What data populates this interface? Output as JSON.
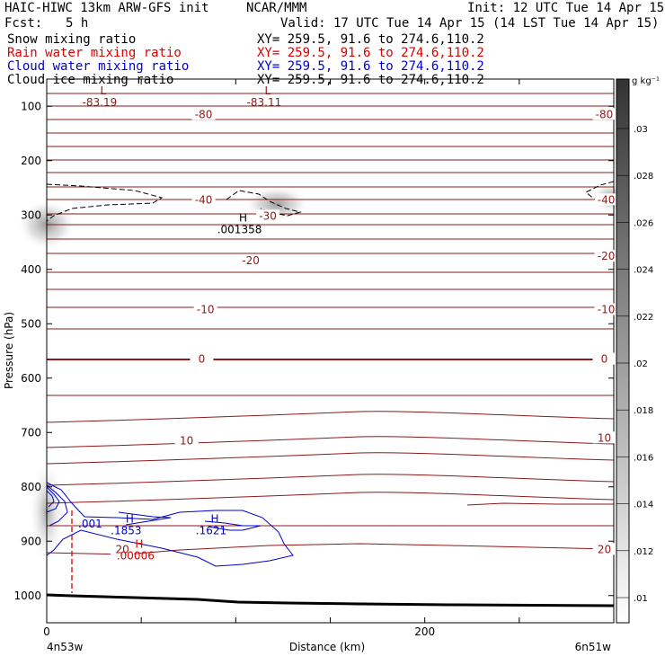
{
  "header": {
    "title": "HAIC-HIWC 13km ARW-GFS init",
    "org": "NCAR/MMM",
    "init": "Init: 12 UTC Tue 14 Apr 15",
    "fcst_label": "Fcst:",
    "fcst_value": "5 h",
    "valid": "Valid: 17 UTC Tue 14 Apr 15 (14 LST Tue 14 Apr 15)"
  },
  "fields": [
    {
      "name": "Snow mixing ratio",
      "xy": "XY= 259.5, 91.6 to 274.6,110.2",
      "color": "#000000"
    },
    {
      "name": "Rain water mixing ratio",
      "xy": "XY= 259.5, 91.6 to 274.6,110.2",
      "color": "#dd0000"
    },
    {
      "name": "Cloud water mixing ratio",
      "xy": "XY= 259.5, 91.6 to 274.6,110.2",
      "color": "#0000cc"
    },
    {
      "name": "Cloud ice mixing ratio",
      "xy": "XY= 259.5, 91.6 to 274.6,110.2",
      "color": "#000000"
    }
  ],
  "chart_data": {
    "type": "cross-section",
    "xlabel": "Distance (km)",
    "ylabel": "Pressure (hPa)",
    "xlim": [
      0,
      300
    ],
    "ylim": [
      1050,
      50
    ],
    "x_ticks": [
      0,
      50,
      100,
      150,
      200,
      250
    ],
    "x_tick_labels": [
      "0",
      "",
      "",
      "",
      "200",
      ""
    ],
    "y_ticks": [
      100,
      200,
      300,
      400,
      500,
      600,
      700,
      800,
      900,
      1000
    ],
    "x_endpoints": {
      "left": "4n53w",
      "right": "6n51w"
    },
    "temperature_contours": {
      "color": "#8b1a1a",
      "labels": [
        {
          "text": "-80",
          "x": 83,
          "p": 115
        },
        {
          "text": "-80",
          "x": 295,
          "p": 115
        },
        {
          "text": "-40",
          "x": 83,
          "p": 272
        },
        {
          "text": "-40",
          "x": 296,
          "p": 272
        },
        {
          "text": "-30",
          "x": 117,
          "p": 302
        },
        {
          "text": "-20",
          "x": 108,
          "p": 384
        },
        {
          "text": "-20",
          "x": 296,
          "p": 376
        },
        {
          "text": "-10",
          "x": 84,
          "p": 474
        },
        {
          "text": "-10",
          "x": 296,
          "p": 474
        },
        {
          "text": "0",
          "x": 82,
          "p": 565
        },
        {
          "text": "0",
          "x": 295,
          "p": 565
        },
        {
          "text": "10",
          "x": 74,
          "p": 715
        },
        {
          "text": "10",
          "x": 295,
          "p": 710
        },
        {
          "text": "20",
          "x": 40,
          "p": 915
        },
        {
          "text": "20",
          "x": 295,
          "p": 915
        }
      ]
    },
    "extrema": [
      {
        "type": "L",
        "value": "-83.19",
        "x": 28,
        "p": 78,
        "color": "#8b1a1a"
      },
      {
        "type": "L",
        "value": "-83.11",
        "x": 115,
        "p": 78,
        "color": "#8b1a1a"
      },
      {
        "type": "H",
        "value": ".001358",
        "x": 102,
        "p": 312,
        "color": "#000000"
      },
      {
        "type": "H",
        "value": ".1853",
        "x": 42,
        "p": 866,
        "color": "#0000cc"
      },
      {
        "type": "H",
        "value": ".1621",
        "x": 87,
        "p": 866,
        "color": "#0000cc"
      },
      {
        "type": "H",
        "value": ".00006",
        "x": 47,
        "p": 912,
        "color": "#dd0000"
      }
    ],
    "extra_labels": [
      {
        "text": ".001",
        "x": 23,
        "p": 875,
        "color": "#0000cc"
      }
    ],
    "colorbar": {
      "units": "g kg⁻¹",
      "ticks": [
        ".03",
        ".028",
        ".026",
        ".024",
        ".022",
        ".02",
        ".018",
        ".016",
        ".014",
        ".012",
        ".01"
      ]
    }
  }
}
